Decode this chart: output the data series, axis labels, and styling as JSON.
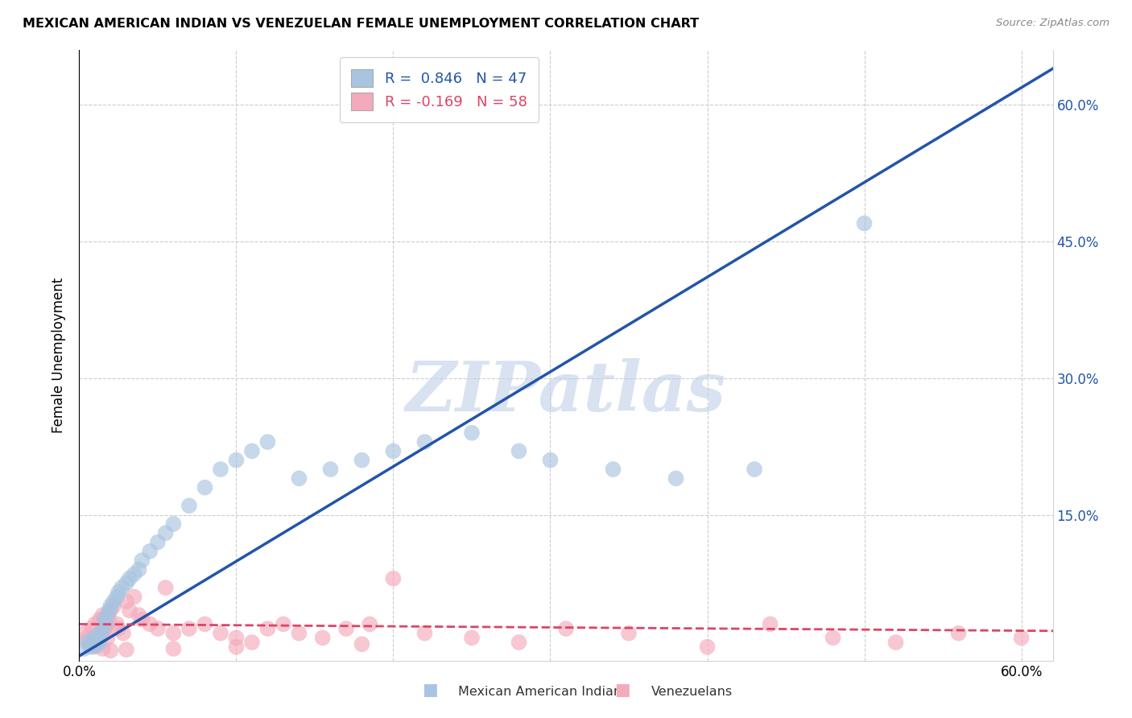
{
  "title": "MEXICAN AMERICAN INDIAN VS VENEZUELAN FEMALE UNEMPLOYMENT CORRELATION CHART",
  "source": "Source: ZipAtlas.com",
  "ylabel": "Female Unemployment",
  "xlim": [
    0.0,
    0.62
  ],
  "ylim": [
    -0.01,
    0.66
  ],
  "blue_R": 0.846,
  "blue_N": 47,
  "pink_R": -0.169,
  "pink_N": 58,
  "blue_color": "#A8C4E0",
  "pink_color": "#F4AABB",
  "blue_line_color": "#2255AA",
  "pink_line_color": "#DD4466",
  "watermark_text": "ZIPatlas",
  "watermark_color": "#C0D0E8",
  "legend_labels": [
    "Mexican American Indians",
    "Venezuelans"
  ],
  "right_ytick_color": "#2255AA",
  "blue_line_slope": 1.04,
  "blue_line_intercept": -0.005,
  "pink_line_slope": -0.012,
  "pink_line_intercept": 0.03,
  "blue_x": [
    0.003,
    0.005,
    0.007,
    0.008,
    0.009,
    0.01,
    0.011,
    0.012,
    0.013,
    0.014,
    0.015,
    0.016,
    0.017,
    0.018,
    0.019,
    0.02,
    0.022,
    0.024,
    0.025,
    0.027,
    0.03,
    0.032,
    0.035,
    0.038,
    0.04,
    0.045,
    0.05,
    0.055,
    0.06,
    0.07,
    0.08,
    0.09,
    0.1,
    0.11,
    0.12,
    0.14,
    0.16,
    0.18,
    0.2,
    0.22,
    0.25,
    0.28,
    0.3,
    0.34,
    0.38,
    0.43,
    0.5
  ],
  "blue_y": [
    0.003,
    0.01,
    0.005,
    0.008,
    0.012,
    0.015,
    0.006,
    0.018,
    0.01,
    0.02,
    0.025,
    0.035,
    0.03,
    0.04,
    0.045,
    0.05,
    0.055,
    0.06,
    0.065,
    0.07,
    0.075,
    0.08,
    0.085,
    0.09,
    0.1,
    0.11,
    0.12,
    0.13,
    0.14,
    0.16,
    0.18,
    0.2,
    0.21,
    0.22,
    0.23,
    0.19,
    0.2,
    0.21,
    0.22,
    0.23,
    0.24,
    0.22,
    0.21,
    0.2,
    0.19,
    0.2,
    0.47
  ],
  "pink_x": [
    0.003,
    0.005,
    0.007,
    0.008,
    0.009,
    0.01,
    0.011,
    0.012,
    0.013,
    0.014,
    0.015,
    0.016,
    0.017,
    0.018,
    0.019,
    0.02,
    0.022,
    0.024,
    0.025,
    0.028,
    0.03,
    0.032,
    0.035,
    0.038,
    0.04,
    0.045,
    0.05,
    0.055,
    0.06,
    0.07,
    0.08,
    0.09,
    0.1,
    0.11,
    0.12,
    0.13,
    0.14,
    0.155,
    0.17,
    0.185,
    0.2,
    0.22,
    0.25,
    0.28,
    0.31,
    0.35,
    0.4,
    0.44,
    0.48,
    0.52,
    0.56,
    0.6,
    0.18,
    0.1,
    0.06,
    0.03,
    0.02,
    0.015
  ],
  "pink_y": [
    0.02,
    0.015,
    0.01,
    0.025,
    0.005,
    0.03,
    0.008,
    0.012,
    0.035,
    0.018,
    0.04,
    0.022,
    0.028,
    0.015,
    0.035,
    0.045,
    0.05,
    0.03,
    0.025,
    0.02,
    0.055,
    0.045,
    0.06,
    0.04,
    0.035,
    0.03,
    0.025,
    0.07,
    0.02,
    0.025,
    0.03,
    0.02,
    0.015,
    0.01,
    0.025,
    0.03,
    0.02,
    0.015,
    0.025,
    0.03,
    0.08,
    0.02,
    0.015,
    0.01,
    0.025,
    0.02,
    0.005,
    0.03,
    0.015,
    0.01,
    0.02,
    0.015,
    0.008,
    0.005,
    0.003,
    0.002,
    0.001,
    0.003
  ]
}
